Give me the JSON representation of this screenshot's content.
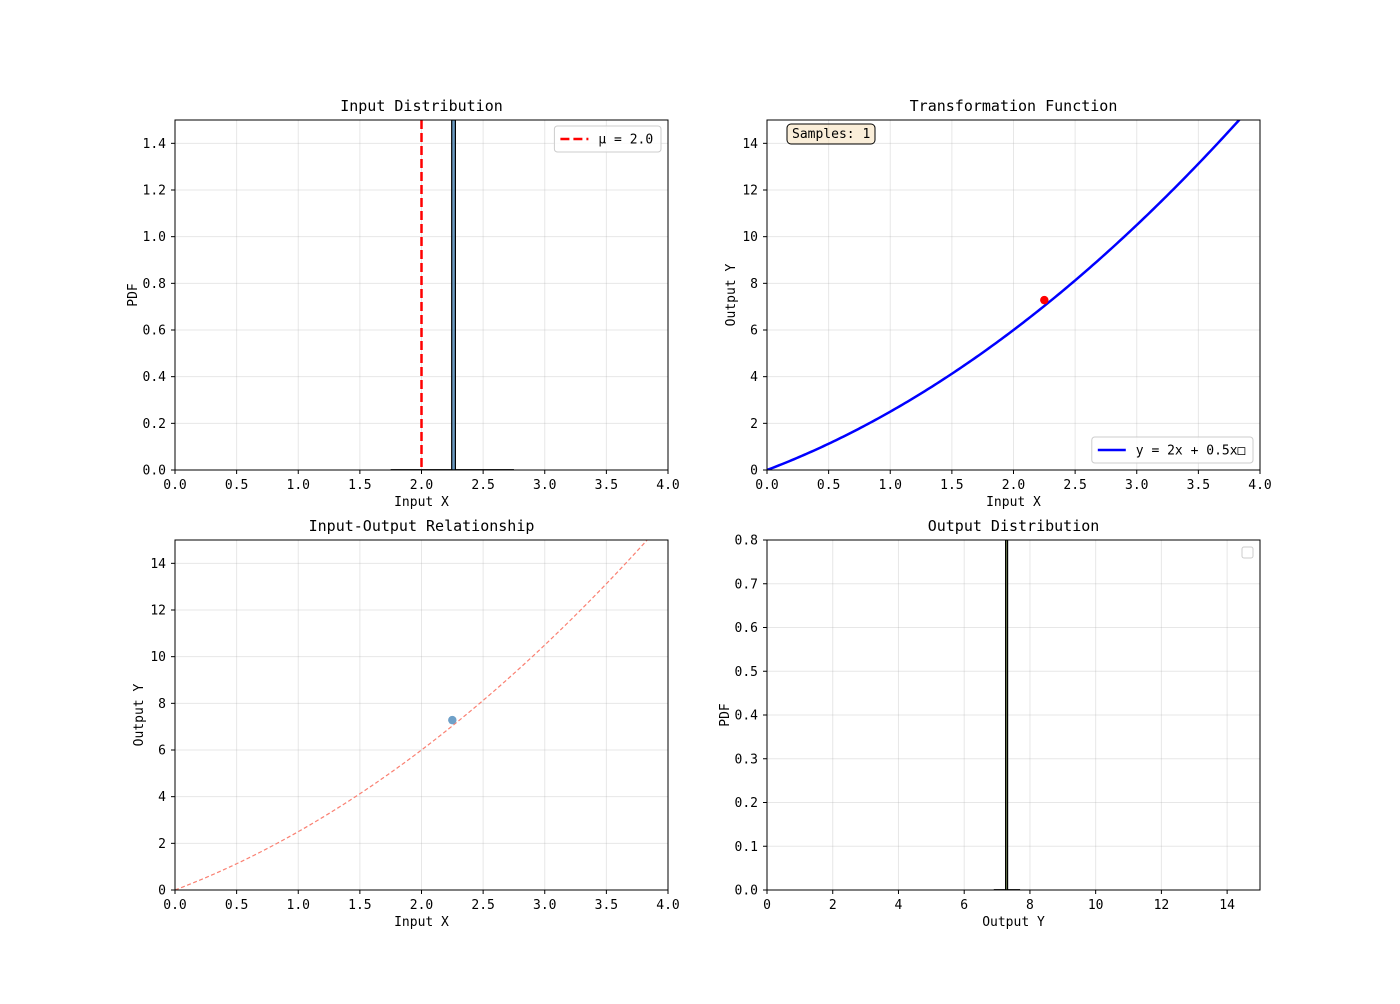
{
  "chart_data": [
    {
      "id": "input-distribution",
      "type": "bar",
      "title": "Input Distribution",
      "xlabel": "Input X",
      "ylabel": "PDF",
      "xlim": [
        0,
        4
      ],
      "ylim": [
        0,
        1.5
      ],
      "xticks": [
        "0.0",
        "0.5",
        "1.0",
        "1.5",
        "2.0",
        "2.5",
        "3.0",
        "3.5",
        "4.0"
      ],
      "yticks": [
        "0.0",
        "0.2",
        "0.4",
        "0.6",
        "0.8",
        "1.0",
        "1.2",
        "1.4"
      ],
      "grid": true,
      "histogram": {
        "bins": [
          {
            "x0": 2.245,
            "x1": 2.275,
            "value": 1.5
          }
        ],
        "color": "#4682b4",
        "edgecolor": "#000000"
      },
      "reference_line": {
        "x": 2.0,
        "color": "#ff0000",
        "style": "dashed"
      },
      "baseline_curve": {
        "x0": 1.75,
        "x1": 2.75,
        "color": "#333333"
      },
      "legend": {
        "position": "top-right",
        "entries": [
          {
            "label": "μ = 2.0",
            "color": "#ff0000",
            "style": "dashed"
          }
        ]
      }
    },
    {
      "id": "transformation-function",
      "type": "line",
      "title": "Transformation Function",
      "xlabel": "Input X",
      "ylabel": "Output Y",
      "xlim": [
        0,
        4
      ],
      "ylim": [
        0,
        15
      ],
      "xticks": [
        "0.0",
        "0.5",
        "1.0",
        "1.5",
        "2.0",
        "2.5",
        "3.0",
        "3.5",
        "4.0"
      ],
      "yticks": [
        "0",
        "2",
        "4",
        "6",
        "8",
        "10",
        "12",
        "14"
      ],
      "grid": true,
      "series": [
        {
          "name": "y = 2x + 0.5x□",
          "function": {
            "a": 2,
            "b": 0.5
          },
          "x_range": [
            0,
            4
          ],
          "color": "#0000ff"
        }
      ],
      "points": [
        {
          "x": 2.25,
          "y": 7.28,
          "color": "#ff0000"
        }
      ],
      "annotation": {
        "text": "Samples: 1",
        "position": "top-left"
      },
      "legend": {
        "position": "bottom-right",
        "entries": [
          {
            "label": "y = 2x + 0.5x□",
            "color": "#0000ff",
            "style": "solid"
          }
        ]
      }
    },
    {
      "id": "input-output-relationship",
      "type": "scatter",
      "title": "Input-Output Relationship",
      "xlabel": "Input X",
      "ylabel": "Output Y",
      "xlim": [
        0,
        4
      ],
      "ylim": [
        0,
        15
      ],
      "xticks": [
        "0.0",
        "0.5",
        "1.0",
        "1.5",
        "2.0",
        "2.5",
        "3.0",
        "3.5",
        "4.0"
      ],
      "yticks": [
        "0",
        "2",
        "4",
        "6",
        "8",
        "10",
        "12",
        "14"
      ],
      "grid": true,
      "series": [
        {
          "function": {
            "a": 2,
            "b": 0.5
          },
          "x_range": [
            0,
            4
          ],
          "color": "#fa8072",
          "style": "dashed"
        }
      ],
      "points": [
        {
          "x": 2.25,
          "y": 7.28,
          "color": "#6fa0c8"
        }
      ]
    },
    {
      "id": "output-distribution",
      "type": "bar",
      "title": "Output Distribution",
      "xlabel": "Output Y",
      "ylabel": "PDF",
      "xlim": [
        0,
        15
      ],
      "ylim": [
        0,
        0.8
      ],
      "xticks": [
        "0",
        "2",
        "4",
        "6",
        "8",
        "10",
        "12",
        "14"
      ],
      "yticks": [
        "0.0",
        "0.1",
        "0.2",
        "0.3",
        "0.4",
        "0.5",
        "0.6",
        "0.7",
        "0.8"
      ],
      "grid": true,
      "histogram": {
        "bins": [
          {
            "x0": 7.26,
            "x1": 7.32,
            "value": 0.8
          }
        ],
        "color": "#556b2f",
        "edgecolor": "#000000"
      },
      "baseline_curve": {
        "x0": 6.9,
        "x1": 7.7,
        "color": "#333333"
      },
      "legend": {
        "position": "top-right",
        "entries": []
      }
    }
  ]
}
